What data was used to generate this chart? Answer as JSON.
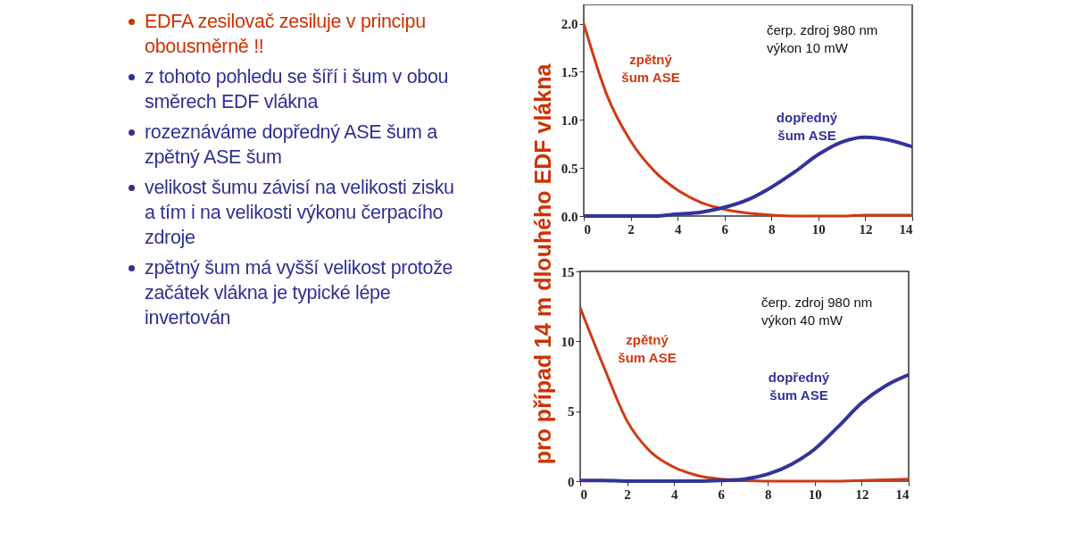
{
  "chart_data": [
    {
      "type": "other",
      "annotations": [
        "EDFA zesilovač zesiluje v principu obousměrně !!",
        "z tohoto pohledu se šíří i šum v obou směrech EDF vlákna",
        "rozeznáváme dopředný ASE šum a zpětný ASE šum",
        "velikost šumu závisí na velikosti zisku a tím i na velikosti výkonu čerpacího zdroje",
        "zpětný šum má vyšší velikost protože začátek vlákna je typické lépe invertován"
      ]
    },
    {
      "type": "line",
      "ylabel": "pro případ 14 m dlouhého EDF vlákna",
      "annotations": [
        "čerp. zdroj 980 nm",
        "výkon 10 mW"
      ],
      "x": [
        0,
        1,
        2,
        3,
        4,
        5,
        6,
        7,
        8,
        9,
        10,
        11,
        12,
        13,
        14
      ],
      "xlim": [
        0,
        14
      ],
      "xticks": [
        0,
        2,
        4,
        6,
        8,
        10,
        12,
        14
      ],
      "ylim": [
        0,
        2.2
      ],
      "yticks": [
        {
          "value": 0,
          "label": "0.0"
        },
        {
          "value": 0.5,
          "label": "0.5"
        },
        {
          "value": 1,
          "label": "1.0"
        },
        {
          "value": 1.5,
          "label": "1.5"
        },
        {
          "value": 2,
          "label": "2.0"
        }
      ],
      "series": [
        {
          "name": "zpětný šum ASE",
          "color": "#d03a10",
          "values": [
            2.0,
            1.25,
            0.78,
            0.47,
            0.27,
            0.14,
            0.07,
            0.03,
            0.01,
            0.0,
            0.0,
            0.0,
            0.01,
            0.01,
            0.01
          ]
        },
        {
          "name": "dopředný šum ASE",
          "color": "#33339a",
          "values": [
            0.0,
            0.0,
            0.0,
            0.0,
            0.02,
            0.04,
            0.09,
            0.17,
            0.3,
            0.46,
            0.64,
            0.77,
            0.82,
            0.79,
            0.72
          ]
        }
      ]
    },
    {
      "type": "line",
      "annotations": [
        "čerp. zdroj 980 nm",
        "výkon 40 mW"
      ],
      "x": [
        0,
        1,
        2,
        3,
        4,
        5,
        6,
        7,
        8,
        9,
        10,
        11,
        12,
        13,
        14
      ],
      "xlim": [
        0,
        14
      ],
      "xticks": [
        0,
        2,
        4,
        6,
        8,
        10,
        12,
        14
      ],
      "ylim": [
        0,
        15
      ],
      "yticks": [
        0,
        5,
        10,
        15
      ],
      "series": [
        {
          "name": "zpětný šum ASE",
          "color": "#d03a10",
          "values": [
            12.4,
            8.2,
            4.3,
            2.1,
            1.0,
            0.4,
            0.15,
            0.05,
            0,
            0,
            0,
            0,
            0.05,
            0.1,
            0.15
          ]
        },
        {
          "name": "dopředný šum ASE",
          "color": "#33339a",
          "values": [
            0.05,
            0.05,
            0,
            0,
            0,
            0,
            0.05,
            0.15,
            0.5,
            1.2,
            2.3,
            3.9,
            5.6,
            6.8,
            7.6
          ]
        }
      ]
    }
  ]
}
